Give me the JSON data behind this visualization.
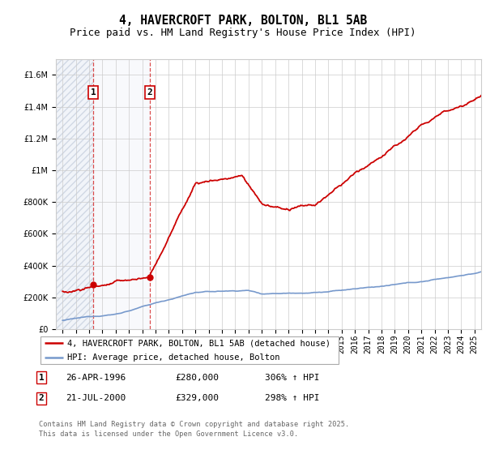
{
  "title": "4, HAVERCROFT PARK, BOLTON, BL1 5AB",
  "subtitle": "Price paid vs. HM Land Registry's House Price Index (HPI)",
  "legend_line1": "4, HAVERCROFT PARK, BOLTON, BL1 5AB (detached house)",
  "legend_line2": "HPI: Average price, detached house, Bolton",
  "sale1_date": "26-APR-1996",
  "sale1_price": 280000,
  "sale1_hpi": "306% ↑ HPI",
  "sale1_year": 1996.32,
  "sale2_date": "21-JUL-2000",
  "sale2_price": 329000,
  "sale2_hpi": "298% ↑ HPI",
  "sale2_year": 2000.55,
  "footer": "Contains HM Land Registry data © Crown copyright and database right 2025.\nThis data is licensed under the Open Government Licence v3.0.",
  "ylim": [
    0,
    1700000
  ],
  "xlim_start": 1993.5,
  "xlim_end": 2025.5,
  "hpi_color": "#7799cc",
  "price_color": "#cc0000",
  "bg_hatch_color": "#c8d4e8",
  "grid_color": "#cccccc",
  "title_fontsize": 10.5,
  "subtitle_fontsize": 9,
  "tick_fontsize": 7
}
